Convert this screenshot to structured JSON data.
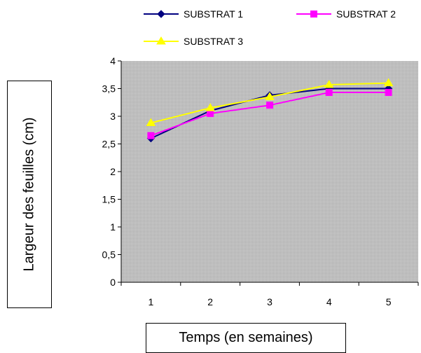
{
  "chart_data": {
    "type": "line",
    "title": "",
    "xlabel": "Temps (en semaines)",
    "ylabel": "Largeur des feuilles (cm)",
    "categories": [
      "1",
      "2",
      "3",
      "4",
      "5"
    ],
    "ylim": [
      0,
      4
    ],
    "yticks": [
      "0",
      "0,5",
      "1",
      "1,5",
      "2",
      "2,5",
      "3",
      "3,5",
      "4"
    ],
    "grid": false,
    "legend_position": "top",
    "background_color": "#c0c0c0",
    "series": [
      {
        "name": "SUBSTRAT 1",
        "values": [
          2.6,
          3.1,
          3.38,
          3.5,
          3.5
        ],
        "color": "#000080",
        "marker": "diamond"
      },
      {
        "name": "SUBSTRAT 2",
        "values": [
          2.65,
          3.05,
          3.2,
          3.43,
          3.43
        ],
        "color": "#ff00ff",
        "marker": "square"
      },
      {
        "name": "SUBSTRAT 3",
        "values": [
          2.88,
          3.15,
          3.35,
          3.57,
          3.6
        ],
        "color": "#ffff00",
        "marker": "triangle"
      }
    ]
  }
}
